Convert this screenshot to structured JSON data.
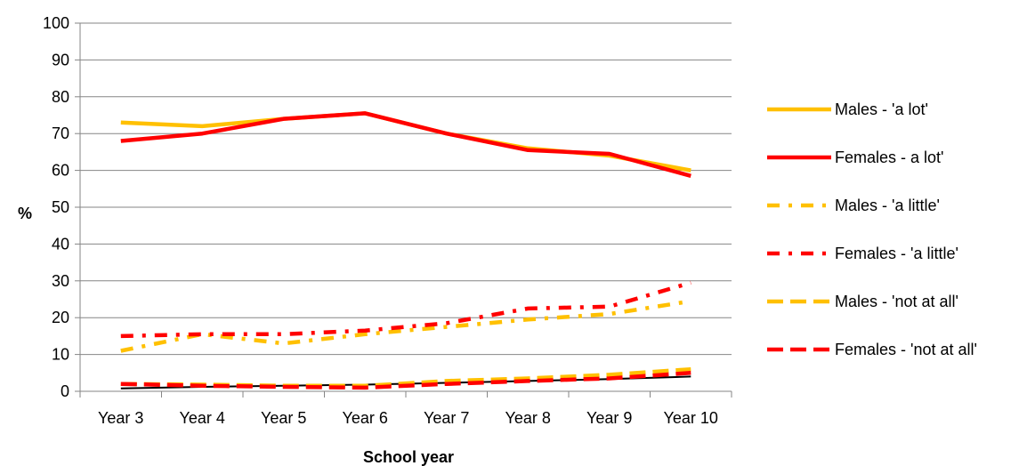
{
  "chart_data": {
    "type": "line",
    "title": "",
    "xlabel": "School year",
    "ylabel": "%",
    "categories": [
      "Year 3",
      "Year 4",
      "Year 5",
      "Year 6",
      "Year 7",
      "Year 8",
      "Year 9",
      "Year 10"
    ],
    "ylim": [
      0,
      100
    ],
    "yticks": [
      0,
      10,
      20,
      30,
      40,
      50,
      60,
      70,
      80,
      90,
      100
    ],
    "grid": true,
    "legend_position": "right",
    "series": [
      {
        "name": "Males - 'a lot'",
        "color": "#FFC000",
        "style": "solid",
        "values": [
          73,
          72,
          74,
          75.5,
          70,
          66,
          64,
          60
        ]
      },
      {
        "name": "Females - a lot'",
        "color": "#FF0000",
        "style": "solid",
        "values": [
          68,
          70,
          74,
          75.5,
          70,
          65.5,
          64.5,
          58.5
        ]
      },
      {
        "name": "Males - 'a little'",
        "color": "#FFC000",
        "style": "dashdot",
        "values": [
          11,
          15.5,
          13,
          15.5,
          17.5,
          19.5,
          21,
          24.5
        ]
      },
      {
        "name": "Females - 'a little'",
        "color": "#FF0000",
        "style": "dashdot",
        "values": [
          15,
          15.5,
          15.5,
          16.5,
          18.5,
          22.5,
          23,
          29.5
        ]
      },
      {
        "name": "Males - 'not at all'",
        "color": "#FFC000",
        "style": "dash",
        "values": [
          2,
          1.8,
          1.5,
          1.5,
          2.8,
          3.5,
          4.5,
          6
        ]
      },
      {
        "name": "Females - 'not at all'",
        "color": "#FF0000",
        "style": "dash",
        "values": [
          2,
          1.5,
          1.2,
          1,
          2,
          2.8,
          3.5,
          5
        ]
      }
    ],
    "trendline": {
      "color": "#000000",
      "values": [
        0.8,
        1.2,
        1.5,
        1.8,
        2.3,
        2.8,
        3.3,
        4
      ]
    }
  }
}
